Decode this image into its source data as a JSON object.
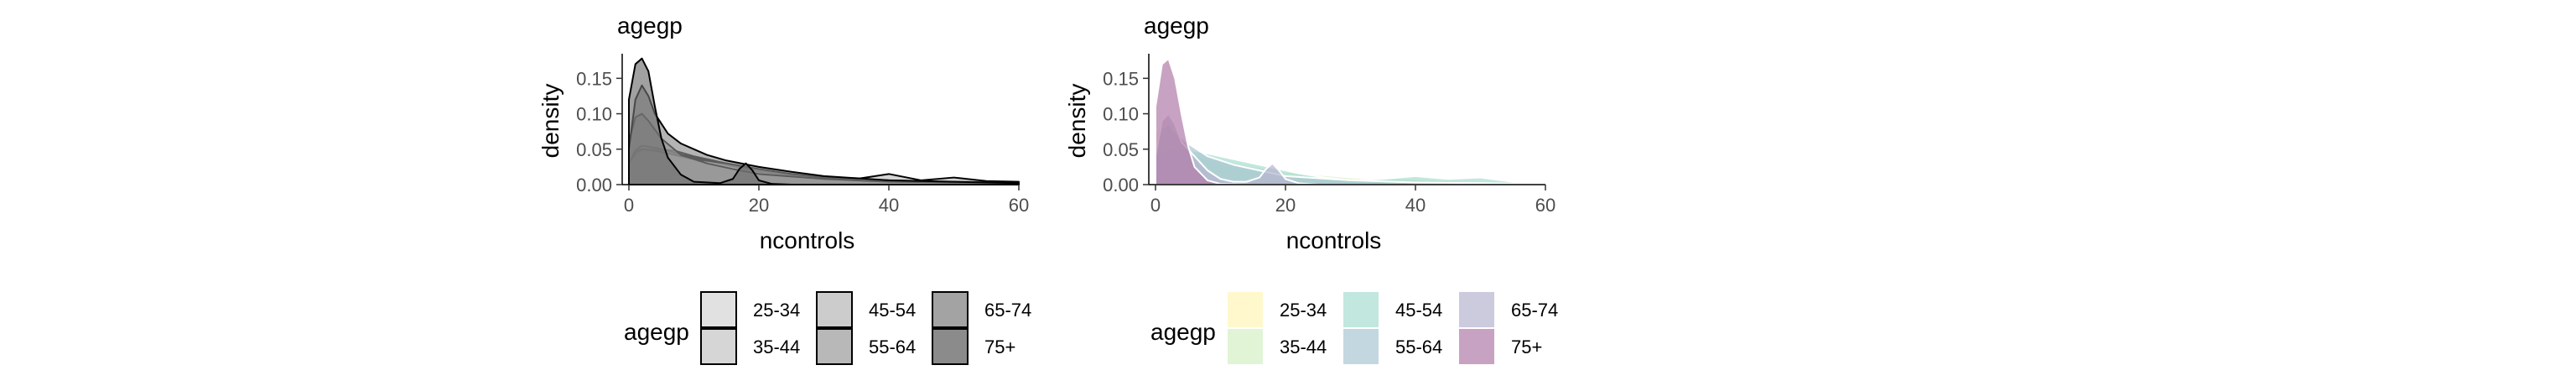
{
  "chart_data": [
    {
      "type": "area",
      "title": "agegp",
      "xlabel": "ncontrols",
      "ylabel": "density",
      "xlim": [
        0,
        60
      ],
      "ylim": [
        0,
        0.18
      ],
      "x_ticks": [
        0,
        20,
        40,
        60
      ],
      "y_ticks": [
        0.0,
        0.05,
        0.1,
        0.15
      ],
      "y_tick_labels": [
        "0.00",
        "0.05",
        "0.10",
        "0.15"
      ],
      "grid": false,
      "legend": {
        "title": "agegp",
        "position": "bottom"
      },
      "fill_style": "grayscale",
      "series": [
        {
          "name": "25-34",
          "fill": "#d9d9d9",
          "x": [
            0,
            1,
            2,
            4,
            7,
            10,
            15,
            20,
            30,
            40,
            50,
            60
          ],
          "values": [
            0.02,
            0.04,
            0.048,
            0.05,
            0.048,
            0.04,
            0.03,
            0.02,
            0.01,
            0.006,
            0.004,
            0.003
          ]
        },
        {
          "name": "35-44",
          "fill": "#cccccc",
          "x": [
            0,
            1,
            2,
            4,
            7,
            10,
            15,
            20,
            30,
            40,
            50,
            60
          ],
          "values": [
            0.03,
            0.048,
            0.055,
            0.052,
            0.045,
            0.038,
            0.028,
            0.018,
            0.01,
            0.006,
            0.004,
            0.003
          ]
        },
        {
          "name": "45-54",
          "fill": "#bfbfbf",
          "x": [
            0,
            1,
            2,
            4,
            7,
            10,
            15,
            20,
            25,
            30,
            35,
            40,
            45,
            50,
            55,
            60
          ],
          "values": [
            0.03,
            0.045,
            0.05,
            0.048,
            0.042,
            0.036,
            0.03,
            0.022,
            0.015,
            0.01,
            0.008,
            0.015,
            0.006,
            0.01,
            0.005,
            0.004
          ]
        },
        {
          "name": "55-64",
          "fill": "#a6a6a6",
          "x": [
            0,
            1,
            2,
            3,
            5,
            8,
            12,
            16,
            20,
            30,
            40,
            50,
            60
          ],
          "values": [
            0.06,
            0.095,
            0.1,
            0.09,
            0.065,
            0.042,
            0.03,
            0.022,
            0.015,
            0.008,
            0.004,
            0.003,
            0.002
          ]
        },
        {
          "name": "65-74",
          "fill": "#8c8c8c",
          "x": [
            0,
            1,
            2,
            3,
            4,
            6,
            8,
            10,
            12,
            15,
            20,
            25,
            30,
            40,
            50,
            60
          ],
          "values": [
            0.05,
            0.12,
            0.14,
            0.125,
            0.1,
            0.072,
            0.058,
            0.05,
            0.042,
            0.034,
            0.025,
            0.018,
            0.012,
            0.006,
            0.004,
            0.002
          ]
        },
        {
          "name": "75+",
          "fill": "#6e6e6e",
          "x": [
            0,
            1,
            2,
            3,
            4,
            5,
            6,
            8,
            10,
            14,
            16,
            17,
            18,
            19,
            20,
            22,
            25,
            30,
            60
          ],
          "values": [
            0.12,
            0.17,
            0.178,
            0.16,
            0.11,
            0.065,
            0.038,
            0.014,
            0.004,
            0.002,
            0.008,
            0.022,
            0.03,
            0.02,
            0.006,
            0.001,
            0.0,
            0.0,
            0.0
          ]
        }
      ]
    },
    {
      "type": "area",
      "title": "agegp",
      "xlabel": "ncontrols",
      "ylabel": "density",
      "xlim": [
        0,
        60
      ],
      "ylim": [
        0,
        0.18
      ],
      "x_ticks": [
        0,
        20,
        40,
        60
      ],
      "y_ticks": [
        0.0,
        0.05,
        0.1,
        0.15
      ],
      "y_tick_labels": [
        "0.00",
        "0.05",
        "0.10",
        "0.15"
      ],
      "grid": false,
      "legend": {
        "title": "agegp",
        "position": "bottom"
      },
      "fill_style": "viridis-pastel",
      "series": [
        {
          "name": "25-34",
          "fill": "#fff5b8",
          "x": [
            0,
            1,
            2,
            3,
            5,
            8,
            12,
            20,
            30,
            40,
            45,
            50,
            60
          ],
          "values": [
            0.07,
            0.095,
            0.09,
            0.07,
            0.05,
            0.035,
            0.025,
            0.012,
            0.006,
            0.008,
            0.004,
            0.003,
            0.002
          ]
        },
        {
          "name": "35-44",
          "fill": "#d4efc4",
          "x": [
            0,
            1,
            2,
            4,
            7,
            10,
            15,
            20,
            30,
            40,
            50,
            55,
            58,
            60
          ],
          "values": [
            0.03,
            0.045,
            0.05,
            0.046,
            0.04,
            0.034,
            0.026,
            0.018,
            0.01,
            0.008,
            0.004,
            0.003,
            0.005,
            0.003
          ]
        },
        {
          "name": "45-54",
          "fill": "#a8ddd0",
          "x": [
            0,
            2,
            4,
            7,
            10,
            14,
            18,
            22,
            26,
            30,
            35,
            40,
            45,
            50,
            55,
            60
          ],
          "values": [
            0.04,
            0.05,
            0.05,
            0.046,
            0.04,
            0.032,
            0.024,
            0.016,
            0.01,
            0.006,
            0.008,
            0.012,
            0.008,
            0.01,
            0.004,
            0.002
          ]
        },
        {
          "name": "55-64",
          "fill": "#a9c6d4",
          "x": [
            0,
            1,
            2,
            3,
            5,
            8,
            12,
            16,
            20,
            30,
            40,
            50,
            60
          ],
          "values": [
            0.05,
            0.08,
            0.085,
            0.075,
            0.058,
            0.04,
            0.028,
            0.02,
            0.012,
            0.006,
            0.003,
            0.002,
            0.001
          ]
        },
        {
          "name": "65-74",
          "fill": "#b6b3cf",
          "x": [
            0,
            1,
            2,
            3,
            4,
            6,
            8,
            10,
            12,
            14,
            16,
            17,
            18,
            19,
            20,
            22,
            25,
            60
          ],
          "values": [
            0.04,
            0.09,
            0.1,
            0.085,
            0.06,
            0.04,
            0.02,
            0.008,
            0.004,
            0.004,
            0.01,
            0.022,
            0.03,
            0.02,
            0.008,
            0.002,
            0.0,
            0.0
          ]
        },
        {
          "name": "75+",
          "fill": "#b07aa8",
          "x": [
            0,
            1,
            2,
            3,
            4,
            5,
            6,
            8,
            10,
            15,
            20,
            60
          ],
          "values": [
            0.11,
            0.17,
            0.178,
            0.15,
            0.1,
            0.055,
            0.025,
            0.006,
            0.001,
            0.0,
            0.0,
            0.0
          ]
        }
      ]
    }
  ]
}
